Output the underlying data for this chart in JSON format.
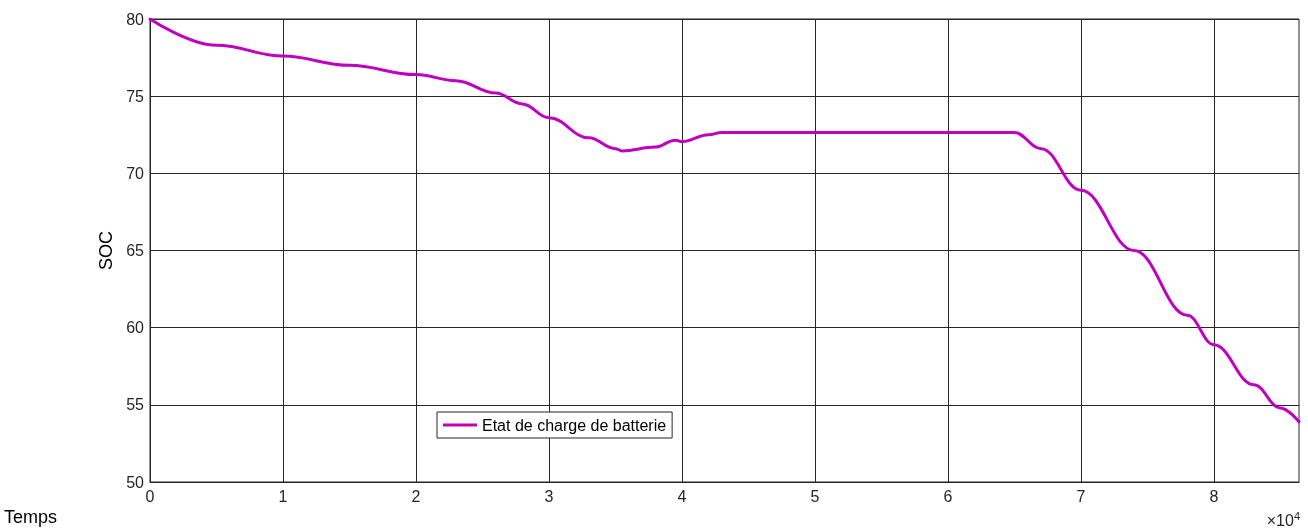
{
  "chart_data": {
    "type": "line",
    "xlabel": "Temps",
    "ylabel": "SOC",
    "x": [
      0,
      0.5,
      1,
      1.5,
      2,
      2.3,
      2.6,
      2.8,
      3,
      3.3,
      3.5,
      3.55,
      3.8,
      3.95,
      4,
      4.2,
      4.3,
      6.5,
      6.7,
      7,
      7.4,
      7.8,
      8,
      8.3,
      8.5,
      8.64
    ],
    "series": [
      {
        "name": "Etat de charge de batterie",
        "color": "#c000c0",
        "values": [
          80,
          78.3,
          77.6,
          77.0,
          76.4,
          76.0,
          75.2,
          74.5,
          73.6,
          72.3,
          71.6,
          71.45,
          71.7,
          72.15,
          72.05,
          72.5,
          72.65,
          72.65,
          71.6,
          68.9,
          65.0,
          60.8,
          58.9,
          56.3,
          54.8,
          53.9
        ]
      }
    ],
    "xlim": [
      0,
      8.64
    ],
    "xticks": [
      0,
      1,
      2,
      3,
      4,
      5,
      6,
      7,
      8
    ],
    "ylim": [
      50,
      80
    ],
    "yticks": [
      50,
      55,
      60,
      65,
      70,
      75,
      80
    ],
    "annotations": [
      "×10$^{4}$"
    ],
    "grid": true,
    "legend": "bottom left",
    "marker": "none",
    "line_style": "solid"
  }
}
